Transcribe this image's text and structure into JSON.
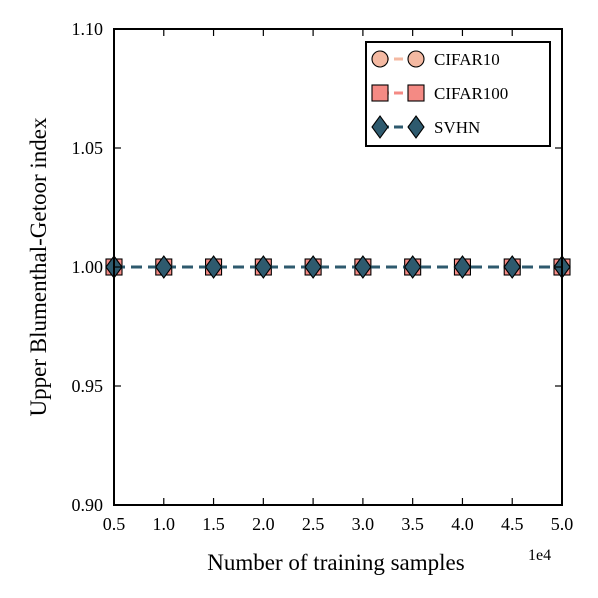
{
  "chart_data": {
    "type": "line",
    "title": "",
    "xlabel": "Number of training samples",
    "ylabel": "Upper Blumenthal-Getoor index",
    "x_offset_label": "1e4",
    "xlim": [
      0.5,
      5.0
    ],
    "ylim": [
      0.9,
      1.1
    ],
    "x_ticks": [
      "0.5",
      "1.0",
      "1.5",
      "2.0",
      "2.5",
      "3.0",
      "3.5",
      "4.0",
      "4.5",
      "5.0"
    ],
    "y_ticks": [
      "0.90",
      "0.95",
      "1.00",
      "1.05",
      "1.10"
    ],
    "grid": false,
    "legend_position": "top-right",
    "x": [
      0.5,
      1.0,
      1.5,
      2.0,
      2.5,
      3.0,
      3.5,
      4.0,
      4.5,
      5.0
    ],
    "series": [
      {
        "name": "CIFAR10",
        "marker": "circle",
        "color": "#f4b9a2",
        "line_color": "#f4b9a2",
        "values": [
          1.0,
          1.0,
          1.0,
          1.0,
          1.0,
          1.0,
          1.0,
          1.0,
          1.0,
          1.0
        ]
      },
      {
        "name": "CIFAR100",
        "marker": "square",
        "color": "#f48a84",
        "line_color": "#f48a84",
        "values": [
          1.0,
          1.0,
          1.0,
          1.0,
          1.0,
          1.0,
          1.0,
          1.0,
          1.0,
          1.0
        ]
      },
      {
        "name": "SVHN",
        "marker": "diamond",
        "color": "#2e5a6e",
        "line_color": "#2e5a6e",
        "values": [
          1.0,
          1.0,
          1.0,
          1.0,
          1.0,
          1.0,
          1.0,
          1.0,
          1.0,
          1.0
        ]
      }
    ]
  }
}
